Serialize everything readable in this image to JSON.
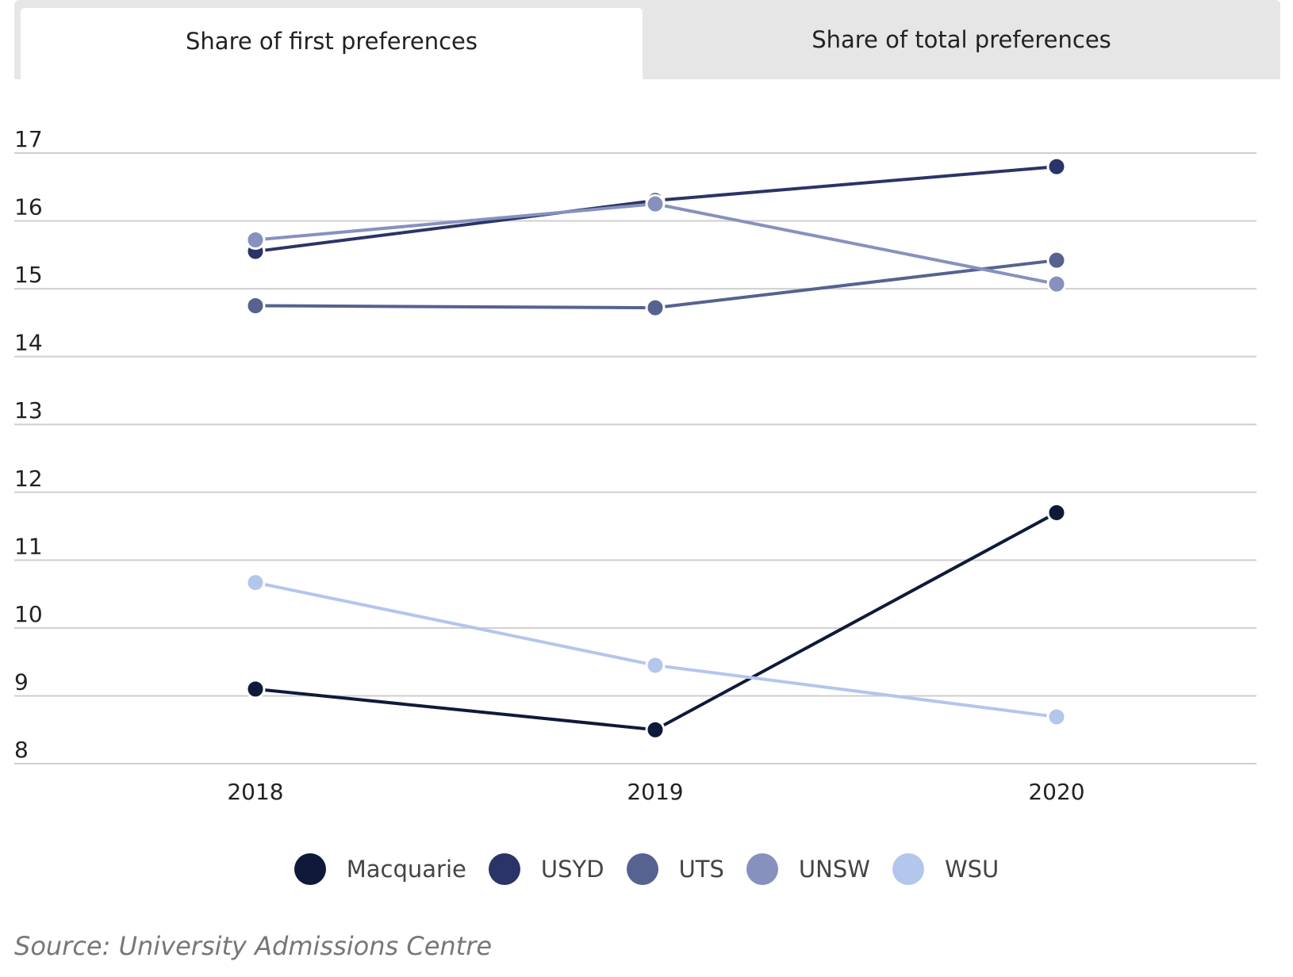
{
  "tabs": [
    {
      "label": "Share of first preferences",
      "active": true
    },
    {
      "label": "Share of total preferences",
      "active": false
    }
  ],
  "source": "Source: University Admissions Centre",
  "chart_data": {
    "type": "line",
    "title": "",
    "xlabel": "",
    "ylabel": "",
    "x": [
      "2018",
      "2019",
      "2020"
    ],
    "ylim": [
      8,
      17
    ],
    "yticks": [
      8,
      9,
      10,
      11,
      12,
      13,
      14,
      15,
      16,
      17
    ],
    "grid": true,
    "legend_position": "bottom",
    "series": [
      {
        "name": "Macquarie",
        "color": "#0f1a3a",
        "values": [
          9.1,
          8.5,
          11.7
        ]
      },
      {
        "name": "USYD",
        "color": "#2b3466",
        "values": [
          15.55,
          16.3,
          16.8
        ]
      },
      {
        "name": "UTS",
        "color": "#56628f",
        "values": [
          14.75,
          14.72,
          15.42
        ]
      },
      {
        "name": "UNSW",
        "color": "#8691be",
        "values": [
          15.72,
          16.25,
          15.07
        ]
      },
      {
        "name": "WSU",
        "color": "#b3c6ec",
        "values": [
          10.67,
          9.45,
          8.69
        ]
      }
    ]
  }
}
